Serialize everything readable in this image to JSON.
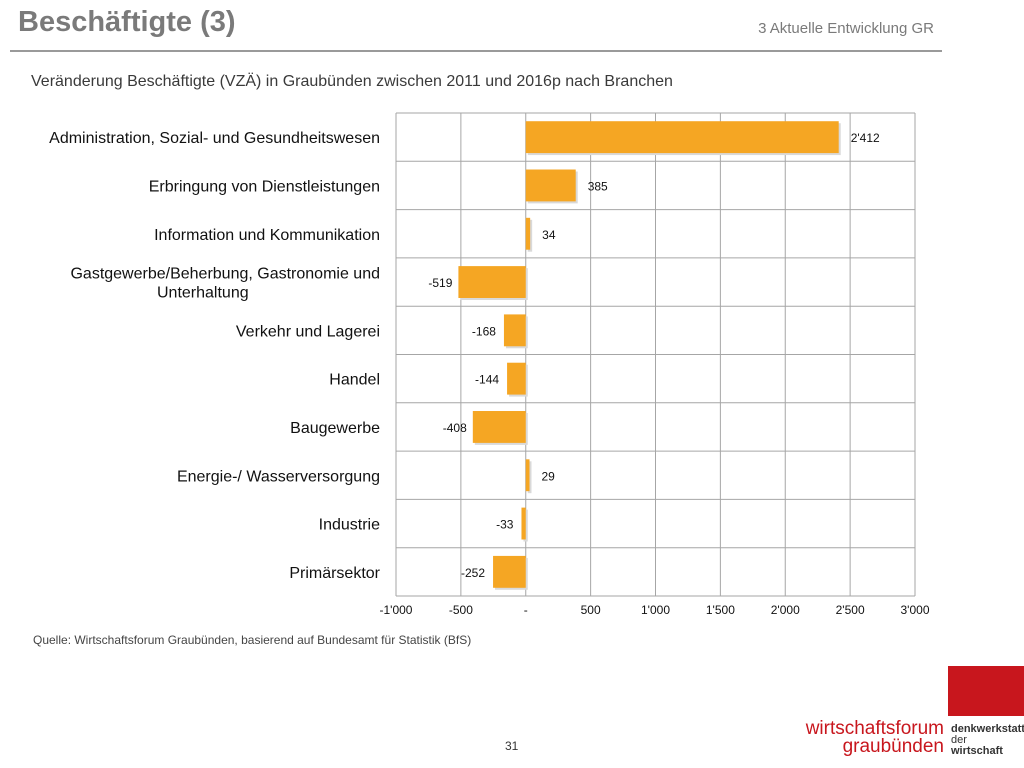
{
  "header": {
    "title": "Beschäftigte (3)",
    "section": "3 Aktuelle Entwicklung GR"
  },
  "footer": {
    "source": "Quelle: Wirtschaftsforum Graubünden, basierend auf Bundesamt für Statistik (BfS)",
    "page_number": "31",
    "logo_line1": "wirtschaftsforum",
    "logo_line2": "graubünden",
    "logo_secondary1": "denkwerkstatt",
    "logo_secondary2": "der",
    "logo_secondary3": "wirtschaft"
  },
  "colors": {
    "bar": "#f5a623",
    "grid": "#a6a6a6",
    "brand": "#c8161d"
  },
  "chart_data": {
    "type": "bar",
    "orientation": "horizontal",
    "title": "Veränderung Beschäftigte (VZÄ) in Graubünden zwischen 2011 und 2016p nach Branchen",
    "categories": [
      [
        "Administration, Sozial- und Gesundheitswesen"
      ],
      [
        "Erbringung von Dienstleistungen"
      ],
      [
        "Information und Kommunikation"
      ],
      [
        "Gastgewerbe/Beherbung, Gastronomie und",
        "Unterhaltung"
      ],
      [
        "Verkehr und Lagerei"
      ],
      [
        "Handel"
      ],
      [
        "Baugewerbe"
      ],
      [
        "Energie-/ Wasserversorgung"
      ],
      [
        "Industrie"
      ],
      [
        "Primärsektor"
      ]
    ],
    "values": [
      2412,
      385,
      34,
      -519,
      -168,
      -144,
      -408,
      29,
      -33,
      -252
    ],
    "data_labels": [
      "2'412",
      "385",
      "34",
      "-519",
      "-168",
      "-144",
      "-408",
      "29",
      "-33",
      "-252"
    ],
    "xlim": [
      -1000,
      3000
    ],
    "xticks": [
      -1000,
      -500,
      0,
      500,
      1000,
      1500,
      2000,
      2500,
      3000
    ],
    "xtick_labels": [
      "-1'000",
      "-500",
      "-",
      "500",
      "1'000",
      "1'500",
      "2'000",
      "2'500",
      "3'000"
    ],
    "grid": true,
    "legend": "none"
  }
}
